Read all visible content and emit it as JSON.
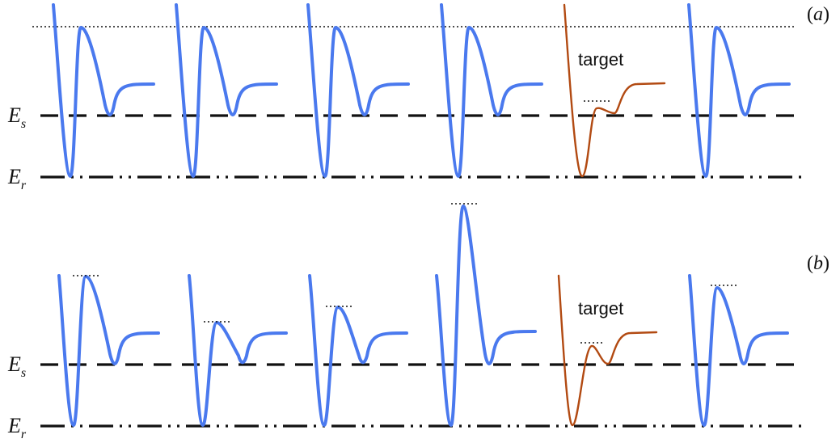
{
  "colors": {
    "well": "#4a79ee",
    "target_well": "#b24a12",
    "line": "#111111"
  },
  "panel_a": {
    "label": "(a)",
    "energy_labels": {
      "es_base": "E",
      "es_sub": "s",
      "er_base": "E",
      "er_sub": "r"
    },
    "target_label": "target",
    "wells": [
      {
        "kind": "normal",
        "barrier_top_marker": false
      },
      {
        "kind": "normal",
        "barrier_top_marker": false
      },
      {
        "kind": "normal",
        "barrier_top_marker": false
      },
      {
        "kind": "normal",
        "barrier_top_marker": false
      },
      {
        "kind": "target",
        "barrier_top_marker": true
      },
      {
        "kind": "normal",
        "barrier_top_marker": false
      }
    ]
  },
  "panel_b": {
    "label": "(b)",
    "energy_labels": {
      "es_base": "E",
      "es_sub": "s",
      "er_base": "E",
      "er_sub": "r"
    },
    "target_label": "target",
    "wells": [
      {
        "kind": "normal",
        "barrier_top_marker": true
      },
      {
        "kind": "normal",
        "barrier_top_marker": true
      },
      {
        "kind": "normal",
        "barrier_top_marker": true
      },
      {
        "kind": "normal",
        "barrier_top_marker": true
      },
      {
        "kind": "target",
        "barrier_top_marker": true
      },
      {
        "kind": "normal",
        "barrier_top_marker": true
      }
    ]
  }
}
